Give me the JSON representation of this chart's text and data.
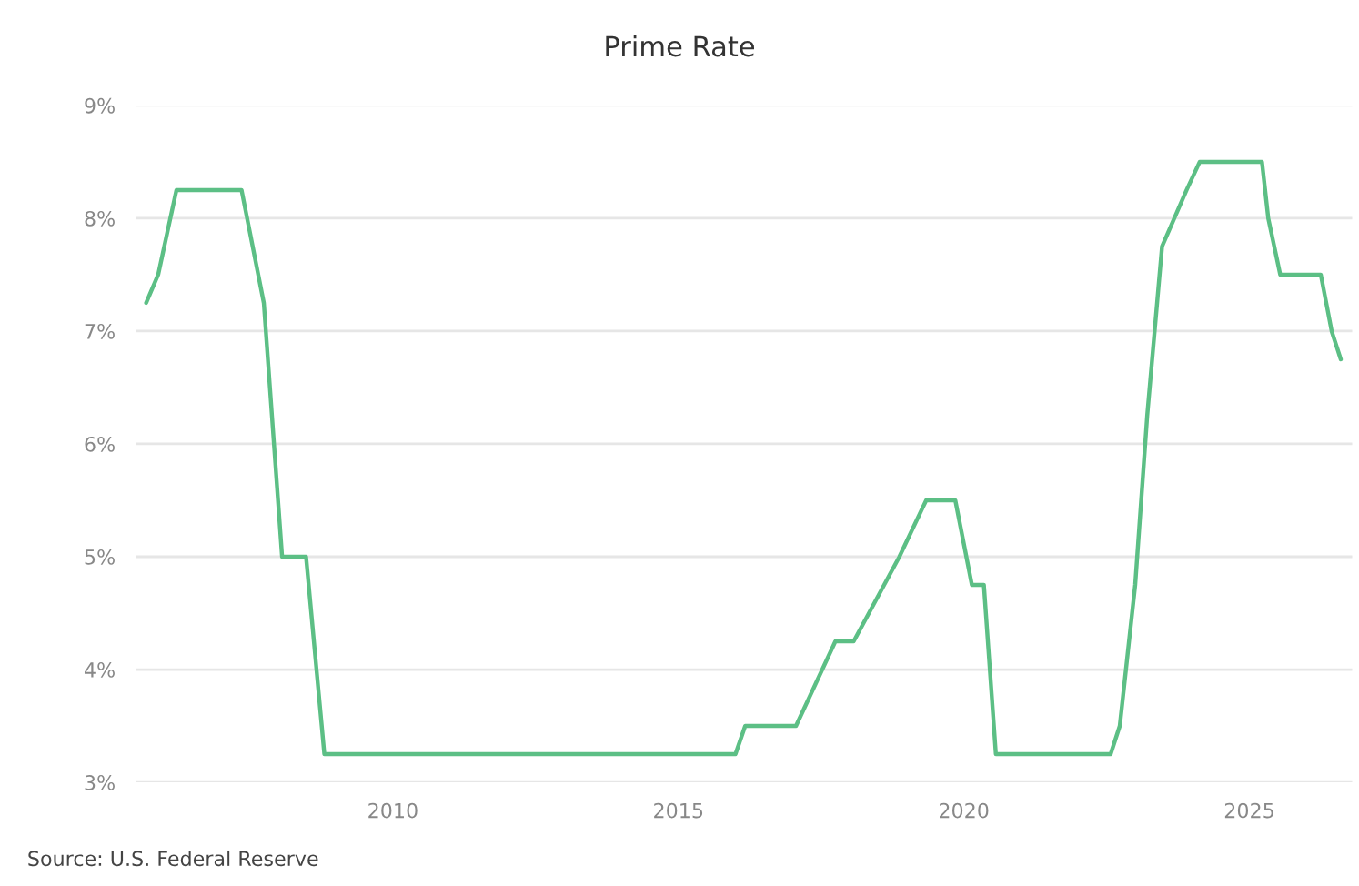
{
  "chart_data": {
    "type": "line",
    "title": "Prime Rate",
    "x": [
      2005.68,
      2005.89,
      2006.21,
      2007.35,
      2007.74,
      2008.06,
      2008.48,
      2008.8,
      2016.0,
      2016.17,
      2017.06,
      2017.75,
      2018.07,
      2018.87,
      2019.34,
      2019.85,
      2020.14,
      2020.35,
      2020.56,
      2022.57,
      2022.73,
      2023.0,
      2023.21,
      2023.47,
      2023.9,
      2024.13,
      2025.22,
      2025.33,
      2025.54,
      2026.25,
      2026.44,
      2026.6
    ],
    "series": [
      {
        "color": "#5cbf85",
        "values": [
          7.25,
          7.5,
          8.25,
          8.25,
          7.25,
          5.0,
          5.0,
          3.25,
          3.25,
          3.5,
          3.5,
          4.25,
          4.25,
          5.0,
          5.5,
          5.5,
          4.75,
          4.75,
          3.25,
          3.25,
          3.5,
          4.75,
          6.25,
          7.75,
          8.25,
          8.5,
          8.5,
          8.0,
          7.5,
          7.5,
          7.0,
          6.75
        ]
      }
    ],
    "xlim": [
      2005.5,
      2026.8
    ],
    "xticks": [
      2010,
      2015,
      2020,
      2025
    ],
    "ylim": [
      3,
      9
    ],
    "yticks": [
      {
        "value": 3,
        "label": "3%"
      },
      {
        "value": 4,
        "label": "4%"
      },
      {
        "value": 5,
        "label": "5%"
      },
      {
        "value": 6,
        "label": "6%"
      },
      {
        "value": 7,
        "label": "7%"
      },
      {
        "value": 8,
        "label": "8%"
      },
      {
        "value": 9,
        "label": "9%"
      }
    ],
    "grid": "y",
    "annotations": [
      "Source: U.S. Federal Reserve"
    ]
  }
}
